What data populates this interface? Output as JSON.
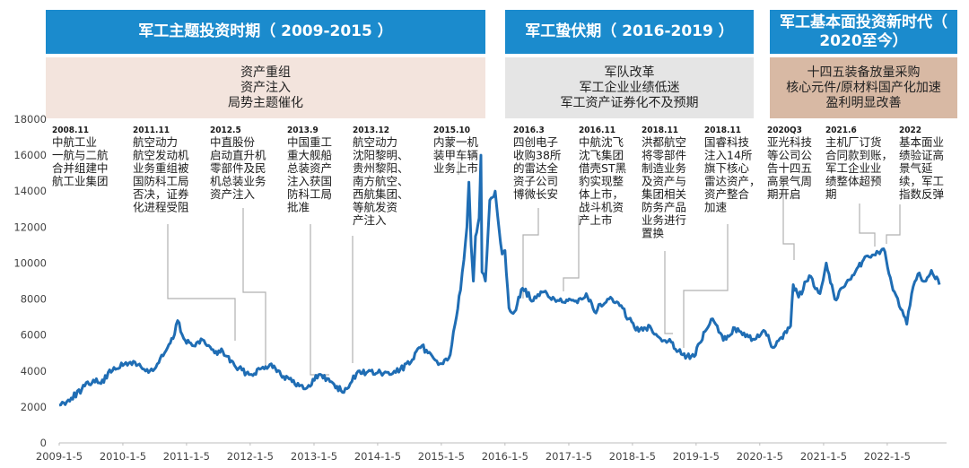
{
  "phases": [
    {
      "title": "军工主题投资时期（ 2009-2015 ）",
      "desc": [
        "资产重组",
        "资产注入",
        "局势主题催化"
      ]
    },
    {
      "title": "军工蛰伏期（ 2016-2019 ）",
      "desc": [
        "军队改革",
        "军工企业业绩低迷",
        "军工资产证券化不及预期"
      ]
    },
    {
      "title": "军工基本面投资新时代（ 2020至今）",
      "desc": [
        "十四五装备放量采购",
        "核心元件/原材料国产化加速",
        "盈利明显改善"
      ]
    }
  ],
  "colors": {
    "phase_blue": "#1b8bcd",
    "line_blue": "#1f6db4",
    "desc_bg1": "#f3e4dd",
    "desc_bg2": "#e5e5e5",
    "desc_bg3": "#d8b9a4"
  },
  "chart_data": {
    "type": "line",
    "title": "",
    "xlabel": "",
    "ylabel": "",
    "ylim": [
      0,
      18000
    ],
    "yticks": [
      0,
      2000,
      4000,
      6000,
      8000,
      10000,
      12000,
      14000,
      16000,
      18000
    ],
    "xticks": [
      "2009-1-5",
      "2010-1-5",
      "2011-1-5",
      "2012-1-5",
      "2013-1-5",
      "2014-1-5",
      "2015-1-5",
      "2016-1-5",
      "2017-1-5",
      "2018-1-5",
      "2019-1-5",
      "2020-1-5",
      "2021-1-5",
      "2022-1-5"
    ],
    "xlim": [
      "2009-01-05",
      "2022-10-31"
    ],
    "series": [
      {
        "name": "",
        "points": [
          [
            "2009-01-05",
            2100
          ],
          [
            "2009-03-15",
            2500
          ],
          [
            "2009-05-15",
            3000
          ],
          [
            "2009-07-20",
            3500
          ],
          [
            "2009-09-01",
            3300
          ],
          [
            "2009-11-15",
            4200
          ],
          [
            "2010-01-05",
            4300
          ],
          [
            "2010-03-15",
            4500
          ],
          [
            "2010-05-15",
            4000
          ],
          [
            "2010-07-05",
            4100
          ],
          [
            "2010-09-01",
            5000
          ],
          [
            "2010-10-20",
            5800
          ],
          [
            "2010-11-15",
            6800
          ],
          [
            "2010-12-20",
            5800
          ],
          [
            "2011-02-15",
            5400
          ],
          [
            "2011-04-15",
            5700
          ],
          [
            "2011-06-15",
            5000
          ],
          [
            "2011-08-01",
            5100
          ],
          [
            "2011-10-15",
            4200
          ],
          [
            "2011-12-15",
            3900
          ],
          [
            "2012-01-05",
            3800
          ],
          [
            "2012-03-01",
            4100
          ],
          [
            "2012-05-05",
            4400
          ],
          [
            "2012-07-15",
            3700
          ],
          [
            "2012-09-01",
            3400
          ],
          [
            "2012-11-15",
            3000
          ],
          [
            "2012-12-05",
            3200
          ],
          [
            "2013-02-01",
            3800
          ],
          [
            "2013-04-15",
            3400
          ],
          [
            "2013-06-25",
            2800
          ],
          [
            "2013-08-01",
            3300
          ],
          [
            "2013-09-15",
            4000
          ],
          [
            "2013-11-01",
            3900
          ],
          [
            "2014-01-05",
            3900
          ],
          [
            "2014-03-15",
            3800
          ],
          [
            "2014-05-15",
            4100
          ],
          [
            "2014-07-15",
            4500
          ],
          [
            "2014-09-15",
            5400
          ],
          [
            "2014-10-20",
            5000
          ],
          [
            "2014-12-01",
            4600
          ],
          [
            "2015-01-15",
            4400
          ],
          [
            "2015-02-25",
            4900
          ],
          [
            "2015-03-25",
            6600
          ],
          [
            "2015-04-25",
            8500
          ],
          [
            "2015-05-15",
            10200
          ],
          [
            "2015-06-01",
            12000
          ],
          [
            "2015-06-12",
            14500
          ],
          [
            "2015-06-25",
            11000
          ],
          [
            "2015-07-08",
            9000
          ],
          [
            "2015-07-20",
            11500
          ],
          [
            "2015-08-10",
            12500
          ],
          [
            "2015-08-20",
            16000
          ],
          [
            "2015-08-26",
            9500
          ],
          [
            "2015-09-15",
            9000
          ],
          [
            "2015-10-10",
            13500
          ],
          [
            "2015-11-10",
            14000
          ],
          [
            "2015-12-01",
            12000
          ],
          [
            "2015-12-20",
            10500
          ],
          [
            "2016-01-05",
            10700
          ],
          [
            "2016-01-28",
            7500
          ],
          [
            "2016-02-29",
            7300
          ],
          [
            "2016-04-15",
            8600
          ],
          [
            "2016-06-15",
            7900
          ],
          [
            "2016-08-15",
            8400
          ],
          [
            "2016-10-15",
            8000
          ],
          [
            "2016-12-15",
            7800
          ],
          [
            "2017-02-15",
            7900
          ],
          [
            "2017-04-15",
            8300
          ],
          [
            "2017-06-01",
            7300
          ],
          [
            "2017-08-15",
            8000
          ],
          [
            "2017-10-15",
            7800
          ],
          [
            "2017-12-15",
            6900
          ],
          [
            "2018-02-10",
            6200
          ],
          [
            "2018-04-15",
            6500
          ],
          [
            "2018-06-15",
            5800
          ],
          [
            "2018-08-15",
            5600
          ],
          [
            "2018-10-20",
            4900
          ],
          [
            "2018-12-25",
            4800
          ],
          [
            "2019-02-25",
            6200
          ],
          [
            "2019-04-10",
            6900
          ],
          [
            "2019-06-10",
            5700
          ],
          [
            "2019-08-15",
            6400
          ],
          [
            "2019-10-15",
            5900
          ],
          [
            "2019-12-15",
            5800
          ],
          [
            "2020-02-05",
            6200
          ],
          [
            "2020-03-20",
            5300
          ],
          [
            "2020-05-15",
            5800
          ],
          [
            "2020-06-30",
            6500
          ],
          [
            "2020-07-15",
            8800
          ],
          [
            "2020-08-15",
            8100
          ],
          [
            "2020-10-15",
            9300
          ],
          [
            "2020-12-15",
            8300
          ],
          [
            "2021-01-20",
            10000
          ],
          [
            "2021-03-10",
            8000
          ],
          [
            "2021-05-15",
            8900
          ],
          [
            "2021-07-15",
            9700
          ],
          [
            "2021-09-15",
            10400
          ],
          [
            "2021-11-15",
            10600
          ],
          [
            "2021-12-15",
            10800
          ],
          [
            "2022-01-15",
            9400
          ],
          [
            "2022-02-15",
            8400
          ],
          [
            "2022-03-15",
            7600
          ],
          [
            "2022-04-27",
            6600
          ],
          [
            "2022-05-25",
            8300
          ],
          [
            "2022-06-30",
            9400
          ],
          [
            "2022-08-15",
            9000
          ],
          [
            "2022-09-15",
            9600
          ],
          [
            "2022-10-31",
            8800
          ]
        ]
      }
    ],
    "annotations": [
      {
        "title": "2008.11",
        "text": [
          "中航工业",
          "一航与二航",
          "合并组建中",
          "航工业集团"
        ]
      },
      {
        "title": "2011.11",
        "text": [
          "航空动力",
          "航空发动机",
          "业务重组被",
          "国防科工局",
          "否决，证券",
          "化进程受阻"
        ]
      },
      {
        "title": "2012.5",
        "text": [
          "中直股份",
          "启动直升机",
          "零部件及民",
          "机总装业务",
          "资产注入"
        ]
      },
      {
        "title": "2013.9",
        "text": [
          "中国重工",
          "重大舰船",
          "总装资产",
          "注入获国",
          "防科工局",
          "批准"
        ]
      },
      {
        "title": "2013.12",
        "text": [
          "航空动力",
          "沈阳黎明、",
          "贵州黎阳、",
          "南方航空、",
          "西航集团、",
          "等航发资",
          "产注入"
        ]
      },
      {
        "title": "2015.10",
        "text": [
          "内蒙一机",
          "装甲车辆",
          "业务上市"
        ]
      },
      {
        "title": "2016.3",
        "text": [
          "四创电子",
          "收购38所",
          "的雷达全",
          "资子公司",
          "博微长安"
        ]
      },
      {
        "title": "2016.11",
        "text": [
          "中航沈飞",
          "沈飞集团",
          "借壳ST黑",
          "豹实现整",
          "体上市，",
          "战斗机资",
          "产上市"
        ]
      },
      {
        "title": "2018.11",
        "text": [
          "洪都航空",
          "将零部件",
          "制造业务",
          "及资产与",
          "集团相关",
          "防务产品",
          "业务进行",
          "置换"
        ]
      },
      {
        "title": "2018.11",
        "text": [
          "国睿科技",
          "注入14所",
          "旗下核心",
          "雷达资产，",
          "资产整合",
          "加速"
        ]
      },
      {
        "title": "2020Q3",
        "text": [
          "亚光科技",
          "等公司公",
          "告十四五",
          "高景气周",
          "期开启"
        ]
      },
      {
        "title": "2021.6",
        "text": [
          "主机厂订货",
          "合同款到账，",
          "军工企业业",
          "绩整体超预",
          "期"
        ]
      },
      {
        "title": "2022",
        "text": [
          "基本面业",
          "绩验证高",
          "景气延",
          "续，军工",
          "指数反弹"
        ]
      }
    ]
  }
}
